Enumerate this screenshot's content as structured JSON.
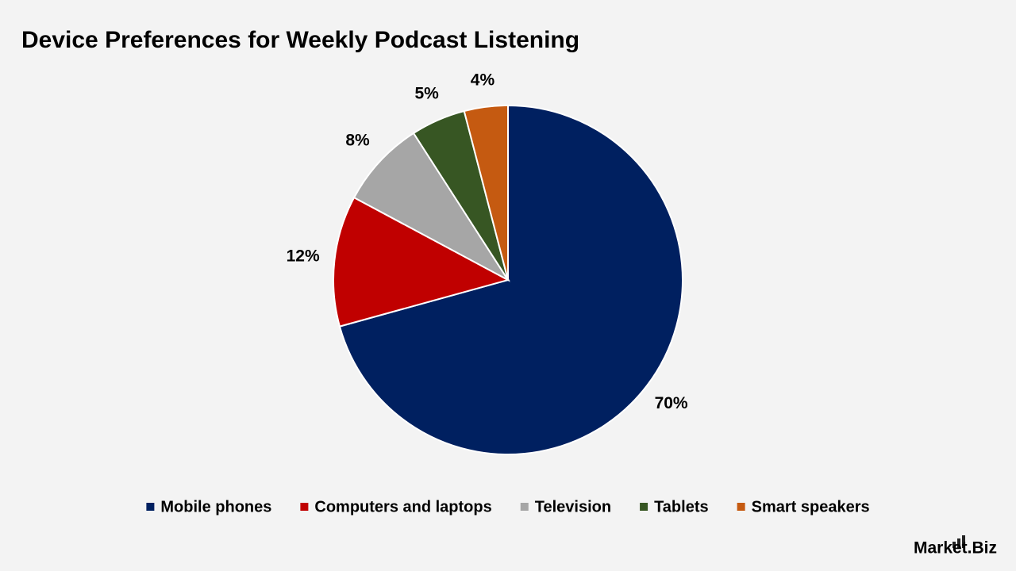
{
  "chart_data": {
    "type": "pie",
    "title": "Device Preferences for Weekly Podcast Listening",
    "categories": [
      "Mobile phones",
      "Computers and laptops",
      "Television",
      "Tablets",
      "Smart speakers"
    ],
    "values": [
      70,
      12,
      8,
      5,
      4
    ],
    "value_labels": [
      "70%",
      "12%",
      "8%",
      "5%",
      "4%"
    ],
    "colors": [
      "#002060",
      "#c00000",
      "#a6a6a6",
      "#375623",
      "#c55a11"
    ],
    "legend": "bottom"
  },
  "logo": "Market.Biz"
}
